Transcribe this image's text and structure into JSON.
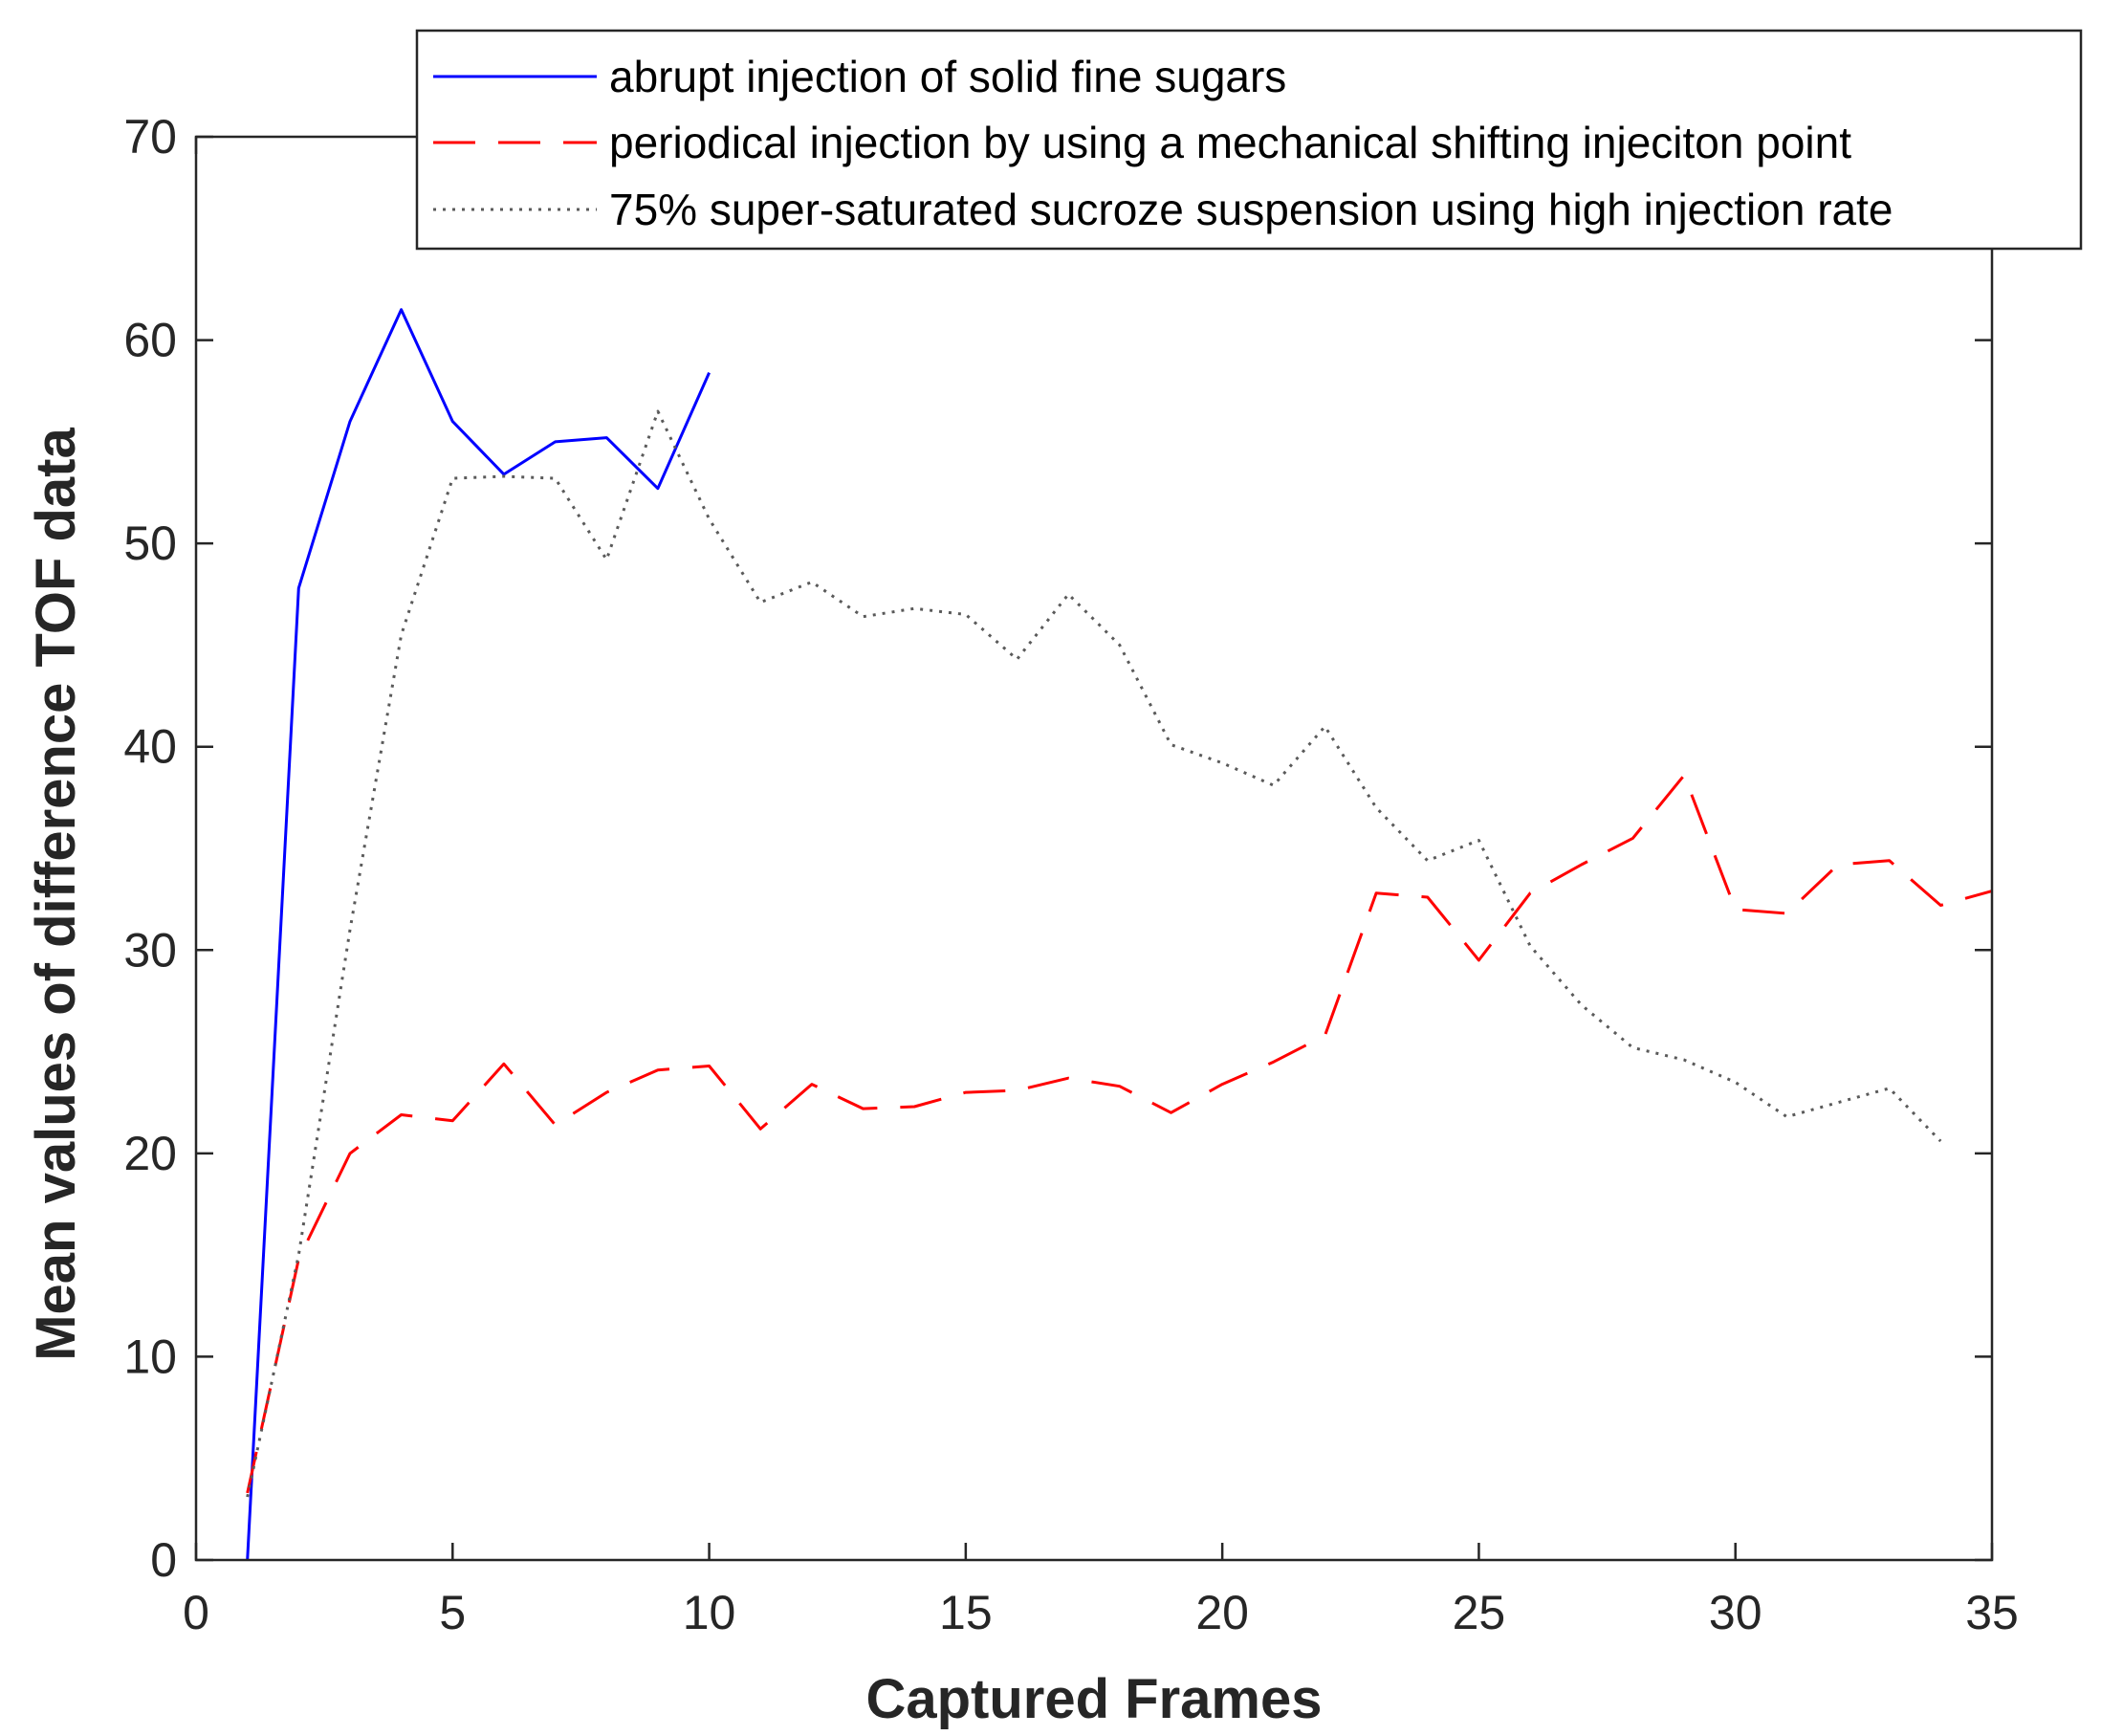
{
  "chart_data": {
    "type": "line",
    "title": "",
    "xlabel": "Captured Frames",
    "ylabel": "Mean values of difference TOF data",
    "xlim": [
      0,
      35
    ],
    "ylim": [
      0,
      70
    ],
    "xticks": [
      0,
      5,
      10,
      15,
      20,
      25,
      30,
      35
    ],
    "yticks": [
      0,
      10,
      20,
      30,
      40,
      50,
      60,
      70
    ],
    "xtick_labels": [
      "0",
      "5",
      "10",
      "15",
      "20",
      "25",
      "30",
      "35"
    ],
    "ytick_labels": [
      "0",
      "10",
      "20",
      "30",
      "40",
      "50",
      "60",
      "70"
    ],
    "grid": false,
    "legend_position": "top-right",
    "series": [
      {
        "name": "abrupt injection of solid fine sugars",
        "color": "#0000ff",
        "style": "solid",
        "x": [
          1,
          2,
          3,
          4,
          5,
          6,
          7,
          8,
          9,
          10
        ],
        "y": [
          0,
          47.8,
          56,
          61.5,
          56,
          53.4,
          55,
          55.2,
          52.7,
          58.4
        ]
      },
      {
        "name": "periodical injection by using a mechanical shifting injeciton point",
        "color": "#ff0000",
        "style": "dashed",
        "x": [
          1,
          2,
          3,
          4,
          5,
          6,
          7,
          8,
          9,
          10,
          11,
          12,
          13,
          14,
          15,
          16,
          17,
          18,
          19,
          20,
          21,
          22,
          23,
          24,
          25,
          26,
          27,
          28,
          29,
          30,
          31,
          32,
          33,
          34,
          35
        ],
        "y": [
          3.3,
          14.8,
          20,
          21.9,
          21.6,
          24.4,
          21.4,
          23,
          24.1,
          24.3,
          21.2,
          23.4,
          22.2,
          22.3,
          23,
          23.1,
          23.7,
          23.3,
          22,
          23.4,
          24.5,
          25.8,
          32.8,
          32.6,
          29.5,
          32.8,
          34.2,
          35.5,
          38.6,
          32,
          31.8,
          34.2,
          34.4,
          32.2,
          32.9
        ]
      },
      {
        "name": "75% super-saturated sucroze suspension using high injection rate",
        "color": "#5a5a5a",
        "style": "dotted",
        "x": [
          1,
          2,
          3,
          4,
          5,
          6,
          7,
          8,
          9,
          10,
          11,
          12,
          13,
          14,
          15,
          16,
          17,
          18,
          19,
          20,
          21,
          22,
          23,
          24,
          25,
          26,
          27,
          28,
          29,
          30,
          31,
          32,
          33,
          34
        ],
        "y": [
          3.1,
          15,
          31,
          45.5,
          53.2,
          53.3,
          53.2,
          49.2,
          56.5,
          51.2,
          47.1,
          48.1,
          46.4,
          46.8,
          46.5,
          44.3,
          47.5,
          45,
          40.1,
          39.2,
          38.1,
          41,
          37,
          34.4,
          35.4,
          30.2,
          27.3,
          25.2,
          24.6,
          23.5,
          21.8,
          22.5,
          23.2,
          20.6
        ]
      }
    ]
  }
}
